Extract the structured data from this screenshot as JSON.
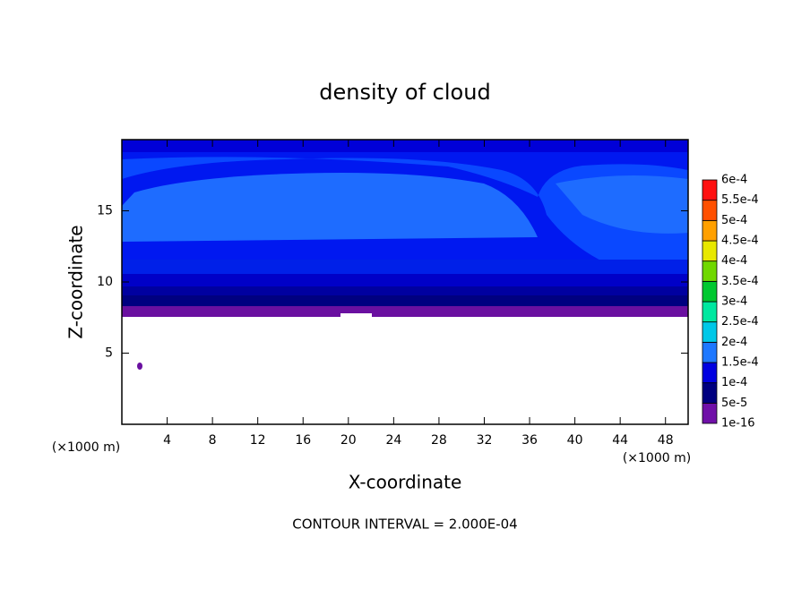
{
  "chart_data": {
    "type": "contour",
    "title": "density of cloud",
    "x_label": "X-coordinate",
    "y_label": "Z-coordinate",
    "x_unit_label": "(×1000 m)",
    "y_unit_label": "(×1000 m)",
    "footer": "CONTOUR INTERVAL = 2.000E-04",
    "xlim": [
      0,
      50
    ],
    "xticks": [
      4,
      8,
      12,
      16,
      20,
      24,
      28,
      32,
      36,
      40,
      44,
      48
    ],
    "ylim": [
      0,
      20
    ],
    "yticks": [
      5,
      10,
      15
    ],
    "colorbar": {
      "levels": [
        {
          "value": 1e-16,
          "label": "1e-16"
        },
        {
          "value": 5e-05,
          "label": "5e-5"
        },
        {
          "value": 0.0001,
          "label": "1e-4"
        },
        {
          "value": 0.00015,
          "label": "1.5e-4"
        },
        {
          "value": 0.0002,
          "label": "2e-4"
        },
        {
          "value": 0.00025,
          "label": "2.5e-4"
        },
        {
          "value": 0.0003,
          "label": "3e-4"
        },
        {
          "value": 0.00035,
          "label": "3.5e-4"
        },
        {
          "value": 0.0004,
          "label": "4e-4"
        },
        {
          "value": 0.00045,
          "label": "4.5e-4"
        },
        {
          "value": 0.0005,
          "label": "5e-4"
        },
        {
          "value": 0.00055,
          "label": "5.5e-4"
        },
        {
          "value": 0.0006,
          "label": "6e-4"
        }
      ],
      "colors": [
        "#7010a8",
        "#000080",
        "#0000e0",
        "#1e78ff",
        "#00c8e8",
        "#00e8a0",
        "#00c830",
        "#70d800",
        "#e8e800",
        "#ffa000",
        "#ff5000",
        "#ff1010"
      ]
    }
  }
}
